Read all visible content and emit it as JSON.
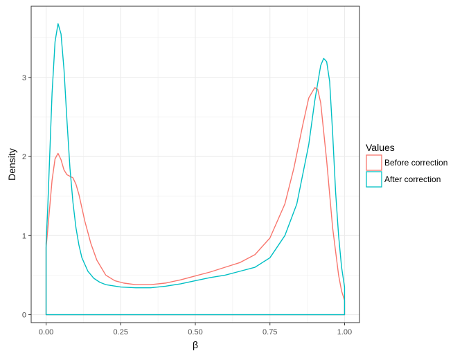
{
  "chart_data": {
    "type": "line",
    "subtype": "density",
    "title": "",
    "xlabel": "β",
    "ylabel": "Density",
    "xlim": [
      -0.05,
      1.05
    ],
    "ylim": [
      -0.1,
      3.9
    ],
    "x_ticks": [
      0,
      0.25,
      0.5,
      0.75,
      1
    ],
    "x_tick_labels": [
      "0.00",
      "0.25",
      "0.50",
      "0.75",
      "1.00"
    ],
    "y_ticks": [
      0,
      1,
      2,
      3
    ],
    "y_tick_labels": [
      "0",
      "1",
      "2",
      "3"
    ],
    "grid": true,
    "legend": {
      "title": "Values",
      "placement": "right",
      "entries": [
        "Before correction",
        "After correction"
      ]
    },
    "colors": {
      "Before correction": "#F8766D",
      "After correction": "#00BFC4"
    },
    "series": [
      {
        "name": "Before correction",
        "color": "#F8766D",
        "x": [
          0,
          0.005,
          0.02,
          0.03,
          0.04,
          0.05,
          0.06,
          0.07,
          0.08,
          0.09,
          0.1,
          0.11,
          0.12,
          0.13,
          0.15,
          0.17,
          0.2,
          0.23,
          0.26,
          0.3,
          0.35,
          0.4,
          0.45,
          0.5,
          0.55,
          0.6,
          0.65,
          0.7,
          0.75,
          0.8,
          0.83,
          0.86,
          0.88,
          0.9,
          0.91,
          0.92,
          0.94,
          0.96,
          0.98,
          0.99,
          1.0
        ],
        "y": [
          0.85,
          1.05,
          1.7,
          1.97,
          2.04,
          1.96,
          1.83,
          1.77,
          1.75,
          1.73,
          1.65,
          1.52,
          1.35,
          1.18,
          0.9,
          0.69,
          0.5,
          0.43,
          0.4,
          0.38,
          0.38,
          0.4,
          0.44,
          0.49,
          0.54,
          0.6,
          0.66,
          0.76,
          0.97,
          1.4,
          1.85,
          2.4,
          2.74,
          2.87,
          2.85,
          2.68,
          1.95,
          1.1,
          0.5,
          0.3,
          0.18
        ]
      },
      {
        "name": "After correction",
        "color": "#00BFC4",
        "x": [
          0,
          0.005,
          0.01,
          0.02,
          0.03,
          0.04,
          0.05,
          0.06,
          0.07,
          0.08,
          0.09,
          0.1,
          0.11,
          0.12,
          0.14,
          0.16,
          0.18,
          0.2,
          0.25,
          0.3,
          0.35,
          0.4,
          0.45,
          0.5,
          0.55,
          0.6,
          0.65,
          0.7,
          0.75,
          0.8,
          0.84,
          0.88,
          0.9,
          0.92,
          0.93,
          0.94,
          0.95,
          0.96,
          0.97,
          0.98,
          0.99,
          1.0
        ],
        "y": [
          0.9,
          1.3,
          1.8,
          2.8,
          3.45,
          3.68,
          3.55,
          3.1,
          2.45,
          1.85,
          1.42,
          1.1,
          0.88,
          0.72,
          0.55,
          0.46,
          0.41,
          0.38,
          0.35,
          0.34,
          0.34,
          0.36,
          0.39,
          0.43,
          0.47,
          0.5,
          0.55,
          0.6,
          0.72,
          1.0,
          1.4,
          2.15,
          2.7,
          3.15,
          3.24,
          3.2,
          2.95,
          2.3,
          1.55,
          1.0,
          0.6,
          0.35
        ]
      }
    ]
  }
}
